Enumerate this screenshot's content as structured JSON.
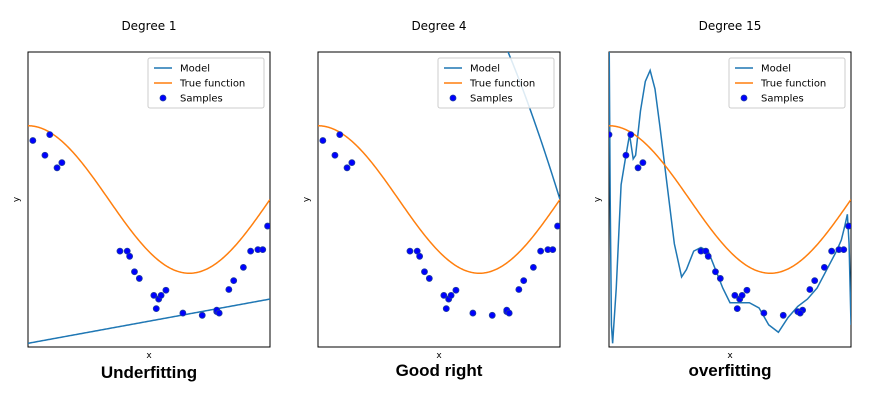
{
  "legend": {
    "model_label": "Model",
    "true_label": "True function",
    "samples_label": "Samples",
    "placement": "top-right"
  },
  "colors": {
    "model": "#1f77b4",
    "true_function": "#ff7f0e",
    "samples_fill": "#0000ff",
    "samples_edge": "#1f3f9f"
  },
  "true_function": {
    "expression": "cos(1.5 * pi * x)"
  },
  "chart_data": [
    {
      "type": "line",
      "title": "Degree 1",
      "xlabel": "x",
      "ylabel": "y",
      "caption": "Underfitting",
      "xlim": [
        0,
        1
      ],
      "ylim": [
        -2,
        2
      ],
      "ticks_visible": false,
      "model_poly": [
        0.6,
        -1.95
      ],
      "samples": [
        [
          0.02,
          0.8
        ],
        [
          0.07,
          0.6
        ],
        [
          0.09,
          0.88
        ],
        [
          0.12,
          0.43
        ],
        [
          0.14,
          0.5
        ],
        [
          0.38,
          -0.7
        ],
        [
          0.41,
          -0.7
        ],
        [
          0.42,
          -0.77
        ],
        [
          0.44,
          -0.98
        ],
        [
          0.46,
          -1.07
        ],
        [
          0.52,
          -1.3
        ],
        [
          0.53,
          -1.48
        ],
        [
          0.54,
          -1.35
        ],
        [
          0.55,
          -1.3
        ],
        [
          0.57,
          -1.23
        ],
        [
          0.64,
          -1.54
        ],
        [
          0.72,
          -1.57
        ],
        [
          0.78,
          -1.52
        ],
        [
          0.78,
          -1.5
        ],
        [
          0.79,
          -1.54
        ],
        [
          0.83,
          -1.22
        ],
        [
          0.85,
          -1.1
        ],
        [
          0.89,
          -0.92
        ],
        [
          0.92,
          -0.7
        ],
        [
          0.95,
          -0.68
        ],
        [
          0.97,
          -0.68
        ],
        [
          0.99,
          -0.36
        ]
      ]
    },
    {
      "type": "line",
      "title": "Degree 4",
      "xlabel": "x",
      "ylabel": "y",
      "caption": "Good right",
      "xlim": [
        0,
        1
      ],
      "ylim": [
        -2,
        2
      ],
      "ticks_visible": false,
      "model_poly": [
        1.0,
        0.0,
        -11.1,
        7.61,
        2.49
      ],
      "samples": [
        [
          0.02,
          0.8
        ],
        [
          0.07,
          0.6
        ],
        [
          0.09,
          0.88
        ],
        [
          0.12,
          0.43
        ],
        [
          0.14,
          0.5
        ],
        [
          0.38,
          -0.7
        ],
        [
          0.41,
          -0.7
        ],
        [
          0.42,
          -0.77
        ],
        [
          0.44,
          -0.98
        ],
        [
          0.46,
          -1.07
        ],
        [
          0.52,
          -1.3
        ],
        [
          0.53,
          -1.48
        ],
        [
          0.54,
          -1.35
        ],
        [
          0.55,
          -1.3
        ],
        [
          0.57,
          -1.23
        ],
        [
          0.64,
          -1.54
        ],
        [
          0.72,
          -1.57
        ],
        [
          0.78,
          -1.52
        ],
        [
          0.78,
          -1.5
        ],
        [
          0.79,
          -1.54
        ],
        [
          0.83,
          -1.22
        ],
        [
          0.85,
          -1.1
        ],
        [
          0.89,
          -0.92
        ],
        [
          0.92,
          -0.7
        ],
        [
          0.95,
          -0.68
        ],
        [
          0.97,
          -0.68
        ],
        [
          0.99,
          -0.36
        ]
      ]
    },
    {
      "type": "line",
      "title": "Degree 15",
      "xlabel": "x",
      "ylabel": "y",
      "caption": "overfitting",
      "xlim": [
        0,
        1
      ],
      "ylim": [
        -2,
        2
      ],
      "ticks_visible": false,
      "model_points": [
        [
          0.0,
          2.5
        ],
        [
          0.005,
          0.0
        ],
        [
          0.01,
          -1.7
        ],
        [
          0.015,
          -1.95
        ],
        [
          0.03,
          -1.2
        ],
        [
          0.05,
          0.2
        ],
        [
          0.07,
          0.6
        ],
        [
          0.085,
          0.88
        ],
        [
          0.1,
          0.55
        ],
        [
          0.11,
          0.6
        ],
        [
          0.13,
          1.2
        ],
        [
          0.15,
          1.6
        ],
        [
          0.17,
          1.75
        ],
        [
          0.19,
          1.5
        ],
        [
          0.21,
          1.0
        ],
        [
          0.24,
          0.2
        ],
        [
          0.27,
          -0.6
        ],
        [
          0.3,
          -1.05
        ],
        [
          0.32,
          -0.95
        ],
        [
          0.35,
          -0.7
        ],
        [
          0.38,
          -0.65
        ],
        [
          0.41,
          -0.7
        ],
        [
          0.44,
          -0.95
        ],
        [
          0.47,
          -1.2
        ],
        [
          0.5,
          -1.4
        ],
        [
          0.54,
          -1.4
        ],
        [
          0.58,
          -1.4
        ],
        [
          0.62,
          -1.47
        ],
        [
          0.66,
          -1.7
        ],
        [
          0.7,
          -1.8
        ],
        [
          0.74,
          -1.6
        ],
        [
          0.78,
          -1.45
        ],
        [
          0.82,
          -1.35
        ],
        [
          0.86,
          -1.2
        ],
        [
          0.9,
          -0.95
        ],
        [
          0.94,
          -0.7
        ],
        [
          0.96,
          -0.55
        ],
        [
          0.975,
          -0.35
        ],
        [
          0.985,
          -0.2
        ],
        [
          0.992,
          -0.6
        ],
        [
          1.0,
          -1.7
        ]
      ],
      "samples": [
        [
          0.0,
          0.88
        ],
        [
          0.07,
          0.6
        ],
        [
          0.09,
          0.88
        ],
        [
          0.12,
          0.43
        ],
        [
          0.14,
          0.5
        ],
        [
          0.38,
          -0.7
        ],
        [
          0.4,
          -0.7
        ],
        [
          0.41,
          -0.77
        ],
        [
          0.44,
          -0.98
        ],
        [
          0.46,
          -1.07
        ],
        [
          0.52,
          -1.3
        ],
        [
          0.53,
          -1.48
        ],
        [
          0.54,
          -1.35
        ],
        [
          0.55,
          -1.3
        ],
        [
          0.57,
          -1.23
        ],
        [
          0.64,
          -1.54
        ],
        [
          0.72,
          -1.57
        ],
        [
          0.78,
          -1.52
        ],
        [
          0.8,
          -1.5
        ],
        [
          0.79,
          -1.54
        ],
        [
          0.83,
          -1.22
        ],
        [
          0.85,
          -1.1
        ],
        [
          0.89,
          -0.92
        ],
        [
          0.92,
          -0.7
        ],
        [
          0.95,
          -0.68
        ],
        [
          0.97,
          -0.68
        ],
        [
          0.99,
          -0.36
        ]
      ]
    }
  ]
}
